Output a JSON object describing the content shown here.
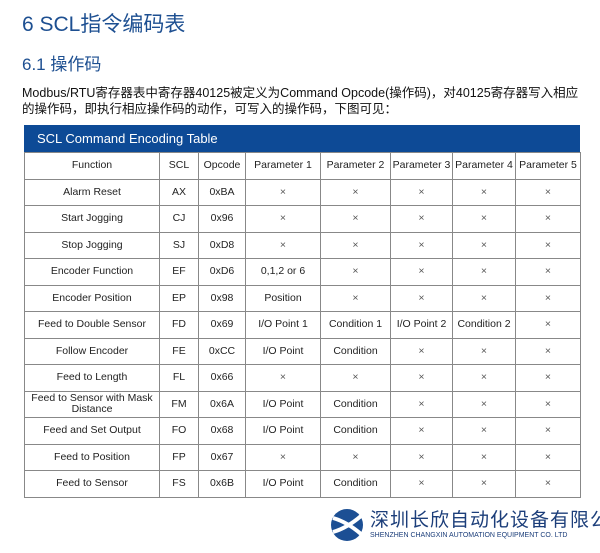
{
  "heading": "6  SCL指令编码表",
  "subheading": "6.1  操作码",
  "paragraph": "Modbus/RTU寄存器表中寄存器40125被定义为Command Opcode(操作码)，对40125寄存器写入相应的操作码，即执行相应操作码的动作，可写入的操作码，下图可见：",
  "table": {
    "caption": "SCL Command Encoding Table",
    "headers": [
      "Function",
      "SCL",
      "Opcode",
      "Parameter 1",
      "Parameter 2",
      "Parameter 3",
      "Parameter 4",
      "Parameter 5"
    ],
    "rows": [
      [
        "Alarm Reset",
        "AX",
        "0xBA",
        "×",
        "×",
        "×",
        "×",
        "×"
      ],
      [
        "Start Jogging",
        "CJ",
        "0x96",
        "×",
        "×",
        "×",
        "×",
        "×"
      ],
      [
        "Stop Jogging",
        "SJ",
        "0xD8",
        "×",
        "×",
        "×",
        "×",
        "×"
      ],
      [
        "Encoder Function",
        "EF",
        "0xD6",
        "0,1,2 or 6",
        "×",
        "×",
        "×",
        "×"
      ],
      [
        "Encoder Position",
        "EP",
        "0x98",
        "Position",
        "×",
        "×",
        "×",
        "×"
      ],
      [
        "Feed to Double Sensor",
        "FD",
        "0x69",
        "I/O Point 1",
        "Condition 1",
        "I/O Point 2",
        "Condition 2",
        "×"
      ],
      [
        "Follow Encoder",
        "FE",
        "0xCC",
        "I/O Point",
        "Condition",
        "×",
        "×",
        "×"
      ],
      [
        "Feed to Length",
        "FL",
        "0x66",
        "×",
        "×",
        "×",
        "×",
        "×"
      ],
      [
        "Feed to Sensor with Mask Distance",
        "FM",
        "0x6A",
        "I/O Point",
        "Condition",
        "×",
        "×",
        "×"
      ],
      [
        "Feed and Set Output",
        "FO",
        "0x68",
        "I/O Point",
        "Condition",
        "×",
        "×",
        "×"
      ],
      [
        "Feed to Position",
        "FP",
        "0x67",
        "×",
        "×",
        "×",
        "×",
        "×"
      ],
      [
        "Feed to Sensor",
        "FS",
        "0x6B",
        "I/O Point",
        "Condition",
        "×",
        "×",
        "×"
      ]
    ]
  },
  "watermark": {
    "cn": "深圳长欣自动化设备有限公司",
    "en": "SHENZHEN CHANGXIN AUTOMATION EQUIPMENT CO. LTD"
  },
  "colors": {
    "heading": "#1d4f91",
    "table_header": "#0d4a96"
  }
}
